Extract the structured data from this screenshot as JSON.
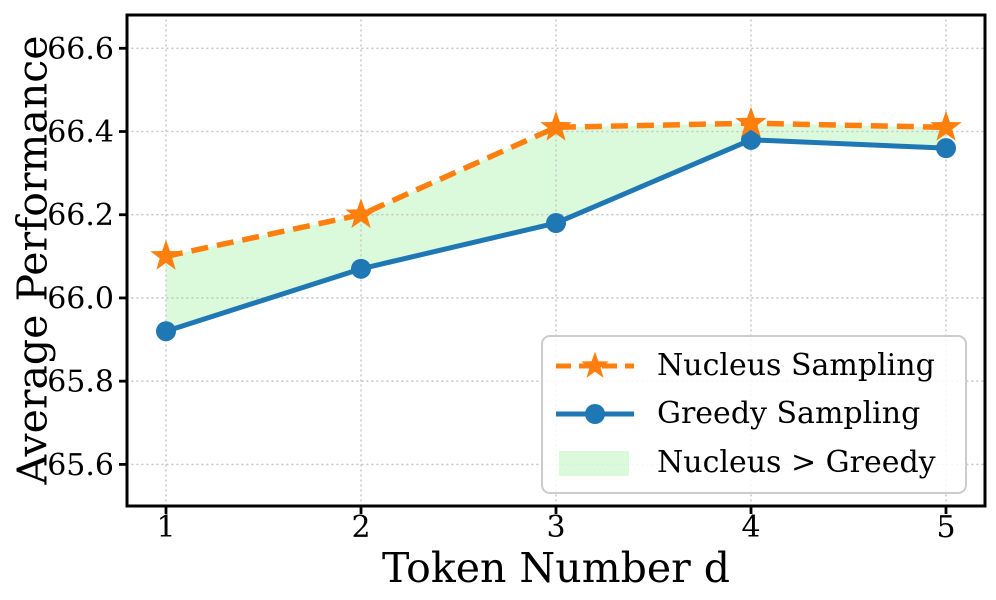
{
  "chart_data": {
    "type": "line",
    "title": "",
    "xlabel": "Token Number d",
    "ylabel": "Average Performance",
    "x": [
      1,
      2,
      3,
      4,
      5
    ],
    "series": [
      {
        "name": "Nucleus Sampling",
        "values": [
          66.1,
          66.2,
          66.41,
          66.42,
          66.41
        ],
        "color": "#ff7f0e",
        "line_style": "dashed",
        "marker": "star"
      },
      {
        "name": "Greedy Sampling",
        "values": [
          65.92,
          66.07,
          66.18,
          66.38,
          66.36
        ],
        "color": "#1f77b4",
        "line_style": "solid",
        "marker": "circle"
      }
    ],
    "shading": {
      "label": "Nucleus > Greedy",
      "color": "#90ee90",
      "opacity": 0.32,
      "description": "area filled between the two lines where nucleus is above greedy"
    },
    "xticks": {
      "values": [
        1,
        2,
        3,
        4,
        5
      ],
      "labels": [
        "1",
        "2",
        "3",
        "4",
        "5"
      ]
    },
    "yticks": {
      "values": [
        65.6,
        65.8,
        66.0,
        66.2,
        66.4,
        66.6
      ],
      "labels": [
        "65.6",
        "65.8",
        "66.0",
        "66.2",
        "66.4",
        "66.6"
      ]
    },
    "xlim": [
      0.8,
      5.2
    ],
    "ylim": [
      65.5,
      66.68
    ],
    "grid": "dotted",
    "grid_color": "#c8c8c8",
    "axis_color": "#000000",
    "legend_position": "lower right"
  }
}
